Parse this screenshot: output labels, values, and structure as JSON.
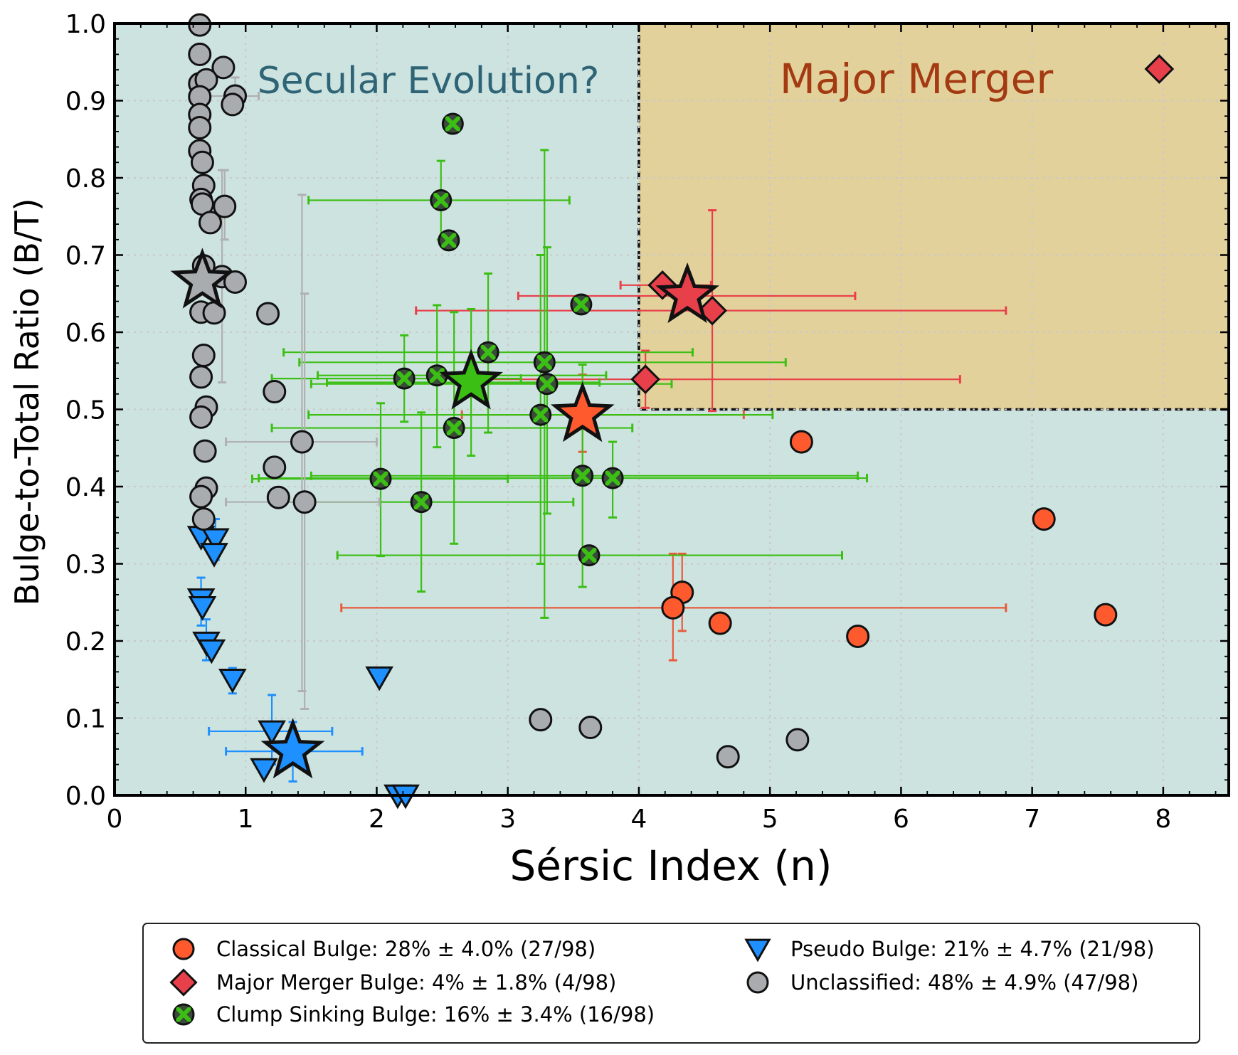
{
  "chart_data": {
    "type": "scatter",
    "xlabel": "Sérsic Index (n)",
    "ylabel": "Bulge-to-Total Ratio (B/T)",
    "xlim": [
      0,
      8.5
    ],
    "ylim": [
      0,
      1.0
    ],
    "x_ticks": [
      "0",
      "1",
      "2",
      "3",
      "4",
      "5",
      "6",
      "7",
      "8"
    ],
    "y_ticks": [
      "0.0",
      "0.1",
      "0.2",
      "0.3",
      "0.4",
      "0.5",
      "0.6",
      "0.7",
      "0.8",
      "0.9",
      "1.0"
    ],
    "grid": true,
    "regions": [
      {
        "name": "Secular Evolution?",
        "color": "#cde3e0",
        "text_color": "#2e6475"
      },
      {
        "name": "Major Merger",
        "color": "#e3d19c",
        "text_color": "#a33a12",
        "x_range": [
          4,
          8.5
        ],
        "y_range": [
          0.5,
          1.0
        ]
      }
    ],
    "legend": {
      "placement": "bottom, below the axes",
      "entries": [
        {
          "label": "Classical Bulge: 28% ± 4.0% (27/98)",
          "marker": "circle",
          "color": "#fe5a2e"
        },
        {
          "label": "Pseudo Bulge: 21% ± 4.7% (21/98)",
          "marker": "triangle-down",
          "color": "#1e90ff"
        },
        {
          "label": "Major Merger Bulge: 4% ± 1.8% (4/98)",
          "marker": "diamond",
          "color": "#e8404a"
        },
        {
          "label": "Unclassified: 48% ± 4.9% (47/98)",
          "marker": "circle",
          "color": "#a9acaf"
        },
        {
          "label": "Clump Sinking Bulge: 16% ± 3.4% (16/98)",
          "marker": "x",
          "color": "#3cbf14"
        }
      ]
    },
    "series": [
      {
        "marker": "circle",
        "color": "#fe5a2e",
        "errcolor": "#e85a3a",
        "points": [
          {
            "x": 5.24,
            "y": 0.458
          },
          {
            "x": 7.09,
            "y": 0.358
          },
          {
            "x": 4.33,
            "y": 0.263,
            "yerr": [
              0.213,
              0.313
            ]
          },
          {
            "x": 4.26,
            "y": 0.243,
            "xerr": [
              1.73,
              6.8
            ],
            "yerr": [
              0.175,
              0.313
            ]
          },
          {
            "x": 4.62,
            "y": 0.223
          },
          {
            "x": 5.67,
            "y": 0.206
          },
          {
            "x": 7.56,
            "y": 0.234
          }
        ],
        "mean": {
          "x": 3.57,
          "y": 0.493,
          "xerr": [
            2.65,
            4.8
          ],
          "yerr": [
            0.445,
            0.545
          ]
        }
      },
      {
        "marker": "diamond",
        "color": "#e8404a",
        "errcolor": "#e8404a",
        "points": [
          {
            "x": 7.97,
            "y": 0.941
          },
          {
            "x": 4.18,
            "y": 0.661,
            "xerr": [
              3.86,
              4.55
            ]
          },
          {
            "x": 4.56,
            "y": 0.628,
            "xerr": [
              2.3,
              6.8
            ],
            "yerr": [
              0.498,
              0.758
            ]
          },
          {
            "x": 4.05,
            "y": 0.539,
            "xerr": [
              2.8,
              6.45
            ],
            "yerr": [
              0.502,
              0.576
            ]
          }
        ],
        "mean": {
          "x": 4.37,
          "y": 0.647,
          "xerr": [
            3.08,
            5.65
          ]
        }
      },
      {
        "marker": "x",
        "color": "#3cbf14",
        "errcolor": "#3cbf14",
        "points": [
          {
            "x": 2.58,
            "y": 0.87
          },
          {
            "x": 2.49,
            "y": 0.771,
            "xerr": [
              1.48,
              3.47
            ],
            "yerr": [
              0.72,
              0.822
            ]
          },
          {
            "x": 2.55,
            "y": 0.719
          },
          {
            "x": 3.56,
            "y": 0.636
          },
          {
            "x": 2.85,
            "y": 0.574,
            "xerr": [
              1.29,
              4.41
            ],
            "yerr": [
              0.47,
              0.676
            ]
          },
          {
            "x": 3.28,
            "y": 0.561,
            "xerr": [
              1.41,
              5.12
            ],
            "yerr": [
              0.23,
              0.836
            ]
          },
          {
            "x": 2.21,
            "y": 0.54,
            "xerr": [
              1.2,
              3.1
            ],
            "yerr": [
              0.484,
              0.596
            ]
          },
          {
            "x": 2.46,
            "y": 0.544,
            "xerr": [
              1.55,
              3.75
            ],
            "yerr": [
              0.451,
              0.635
            ]
          },
          {
            "x": 3.3,
            "y": 0.533,
            "xerr": [
              1.5,
              4.25
            ],
            "yerr": [
              0.365,
              0.71
            ]
          },
          {
            "x": 3.25,
            "y": 0.493,
            "xerr": [
              1.48,
              5.02
            ],
            "yerr": [
              0.3,
              0.7
            ]
          },
          {
            "x": 2.59,
            "y": 0.476,
            "xerr": [
              1.2,
              3.95
            ],
            "yerr": [
              0.326,
              0.626
            ]
          },
          {
            "x": 2.03,
            "y": 0.41,
            "xerr": [
              1.05,
              3.0
            ],
            "yerr": [
              0.31,
              0.508
            ]
          },
          {
            "x": 3.57,
            "y": 0.414,
            "xerr": [
              1.5,
              5.67
            ],
            "yerr": [
              0.27,
              0.558
            ]
          },
          {
            "x": 3.8,
            "y": 0.411,
            "xerr": [
              1.1,
              5.74
            ],
            "yerr": [
              0.36,
              0.458
            ]
          },
          {
            "x": 2.34,
            "y": 0.38,
            "xerr": [
              1.3,
              3.5
            ],
            "yerr": [
              0.264,
              0.496
            ]
          },
          {
            "x": 3.62,
            "y": 0.311,
            "xerr": [
              1.7,
              5.55
            ]
          }
        ],
        "mean": {
          "x": 2.72,
          "y": 0.535,
          "xerr": [
            1.62,
            3.7
          ],
          "yerr": [
            0.44,
            0.63
          ]
        }
      },
      {
        "marker": "triangle-down",
        "color": "#1e90ff",
        "errcolor": "#1e90ff",
        "points": [
          {
            "x": 0.66,
            "y": 0.335
          },
          {
            "x": 0.77,
            "y": 0.332,
            "yerr": [
              0.305,
              0.358
            ]
          },
          {
            "x": 0.76,
            "y": 0.313
          },
          {
            "x": 0.66,
            "y": 0.254,
            "yerr": [
              0.22,
              0.282
            ]
          },
          {
            "x": 0.67,
            "y": 0.244
          },
          {
            "x": 0.7,
            "y": 0.198,
            "yerr": [
              0.175,
              0.228
            ]
          },
          {
            "x": 0.74,
            "y": 0.188
          },
          {
            "x": 0.9,
            "y": 0.15,
            "yerr": [
              0.132,
              0.165
            ]
          },
          {
            "x": 2.02,
            "y": 0.153
          },
          {
            "x": 1.2,
            "y": 0.083,
            "xerr": [
              0.72,
              1.66
            ],
            "yerr": [
              0.04,
              0.13
            ]
          },
          {
            "x": 1.14,
            "y": 0.034
          },
          {
            "x": 2.16,
            "y": 0.0
          },
          {
            "x": 2.22,
            "y": 0.0
          }
        ],
        "mean": {
          "x": 1.36,
          "y": 0.057,
          "xerr": [
            0.85,
            1.89
          ],
          "yerr": [
            0.018,
            0.095
          ]
        }
      },
      {
        "marker": "circle",
        "color": "#a9acaf",
        "errcolor": "#b0b0b0",
        "points": [
          {
            "x": 0.65,
            "y": 0.998
          },
          {
            "x": 0.65,
            "y": 0.96
          },
          {
            "x": 0.83,
            "y": 0.943
          },
          {
            "x": 0.65,
            "y": 0.922
          },
          {
            "x": 0.7,
            "y": 0.927
          },
          {
            "x": 0.65,
            "y": 0.905
          },
          {
            "x": 0.92,
            "y": 0.906,
            "xerr": [
              0.6,
              1.1
            ],
            "yerr": [
              0.885,
              0.93
            ]
          },
          {
            "x": 0.9,
            "y": 0.895
          },
          {
            "x": 0.65,
            "y": 0.882
          },
          {
            "x": 0.65,
            "y": 0.865
          },
          {
            "x": 0.65,
            "y": 0.835
          },
          {
            "x": 0.67,
            "y": 0.82
          },
          {
            "x": 0.68,
            "y": 0.79
          },
          {
            "x": 0.66,
            "y": 0.772
          },
          {
            "x": 0.67,
            "y": 0.766
          },
          {
            "x": 0.84,
            "y": 0.763,
            "yerr": [
              0.72,
              0.81
            ]
          },
          {
            "x": 0.73,
            "y": 0.742
          },
          {
            "x": 0.68,
            "y": 0.686
          },
          {
            "x": 0.82,
            "y": 0.672,
            "yerr": [
              0.535,
              0.81
            ]
          },
          {
            "x": 0.92,
            "y": 0.665
          },
          {
            "x": 0.66,
            "y": 0.626
          },
          {
            "x": 0.76,
            "y": 0.625
          },
          {
            "x": 1.17,
            "y": 0.624
          },
          {
            "x": 0.68,
            "y": 0.57
          },
          {
            "x": 0.66,
            "y": 0.542
          },
          {
            "x": 1.22,
            "y": 0.523
          },
          {
            "x": 0.7,
            "y": 0.503
          },
          {
            "x": 0.66,
            "y": 0.49
          },
          {
            "x": 1.43,
            "y": 0.458,
            "xerr": [
              0.85,
              2.0
            ],
            "yerr": [
              0.135,
              0.778
            ]
          },
          {
            "x": 0.69,
            "y": 0.446
          },
          {
            "x": 1.22,
            "y": 0.425
          },
          {
            "x": 0.7,
            "y": 0.398
          },
          {
            "x": 0.66,
            "y": 0.387
          },
          {
            "x": 1.25,
            "y": 0.386
          },
          {
            "x": 1.45,
            "y": 0.38,
            "xerr": [
              0.85,
              2.02
            ],
            "yerr": [
              0.112,
              0.65
            ]
          },
          {
            "x": 0.68,
            "y": 0.358
          },
          {
            "x": 3.25,
            "y": 0.098
          },
          {
            "x": 3.63,
            "y": 0.088
          },
          {
            "x": 4.68,
            "y": 0.05
          },
          {
            "x": 5.21,
            "y": 0.072
          }
        ],
        "mean": {
          "x": 0.67,
          "y": 0.666
        }
      }
    ]
  }
}
